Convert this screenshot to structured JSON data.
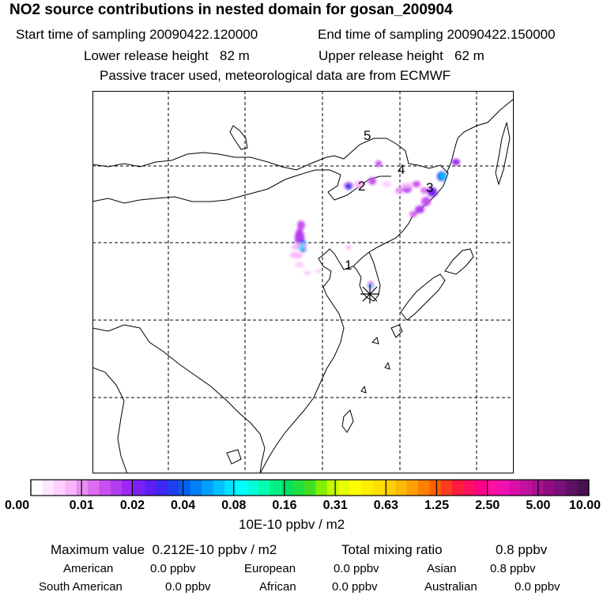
{
  "header": {
    "title": "NO2 source contributions in nested domain for gosan_200904",
    "start": "Start time of sampling 20090422.120000",
    "end": "End time of sampling 20090422.150000",
    "lower": "Lower release height   82 m",
    "upper": "Upper release height   62 m",
    "tracer": "Passive tracer used, meteorological data are from ECMWF"
  },
  "map": {
    "labels": [
      "1",
      "2",
      "3",
      "4",
      "5"
    ],
    "receptor": "*"
  },
  "colorbar": {
    "ticks": [
      "0.00",
      "0.01",
      "0.02",
      "0.04",
      "0.08",
      "0.16",
      "0.31",
      "0.63",
      "1.25",
      "2.50",
      "5.00",
      "10.00"
    ],
    "colors": [
      "#ffffff",
      "#ffe6ff",
      "#ffd0ff",
      "#f8b6fa",
      "#e88ef0",
      "#dc6cf0",
      "#c850f0",
      "#b23cf0",
      "#9a28f0",
      "#7a20f2",
      "#5c20f2",
      "#3c28f0",
      "#2040f0",
      "#0060f0",
      "#0080f8",
      "#00a0ff",
      "#00c0ff",
      "#00e0ff",
      "#00ffff",
      "#00ffd8",
      "#00ffb0",
      "#00f088",
      "#00e060",
      "#20e040",
      "#40e020",
      "#80f000",
      "#c0f800",
      "#e8ff00",
      "#ffff00",
      "#fff000",
      "#ffe000",
      "#ffd000",
      "#ffb800",
      "#ffa000",
      "#ff8000",
      "#ff6000",
      "#ff3c1c",
      "#ff1c3c",
      "#ff1060",
      "#ff0088",
      "#ff10a0",
      "#f010b0",
      "#d810a8",
      "#c0109c",
      "#a81090",
      "#900c84",
      "#781078",
      "#601064",
      "#481050"
    ],
    "units": "10E-10 ppbv / m2"
  },
  "summary": {
    "max_label": "Maximum value  0.212E-10 ppbv / m2",
    "total_label": "Total mixing ratio",
    "total_value": "0.8 ppbv",
    "regions": [
      {
        "name": "American",
        "value": "0.0 ppbv"
      },
      {
        "name": "European",
        "value": "0.0 ppbv"
      },
      {
        "name": "Asian",
        "value": "0.8 ppbv"
      },
      {
        "name": "South American",
        "value": "0.0 ppbv"
      },
      {
        "name": "African",
        "value": "0.0 ppbv"
      },
      {
        "name": "Australian",
        "value": "0.0 ppbv"
      }
    ]
  }
}
